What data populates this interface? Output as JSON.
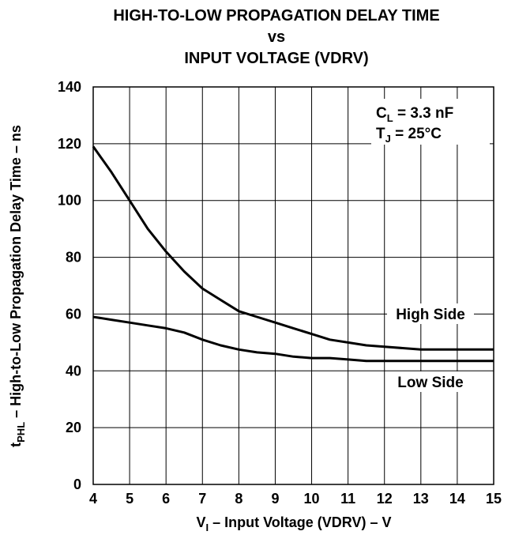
{
  "chart_data": {
    "type": "line",
    "title_lines": [
      "HIGH-TO-LOW PROPAGATION DELAY TIME",
      "vs",
      "INPUT VOLTAGE (VDRV)"
    ],
    "xlabel": {
      "main": "V",
      "sub": "I",
      "rest": " – Input Voltage (VDRV) – V"
    },
    "ylabel": {
      "main": "t",
      "sub": "PHL",
      "rest": "  – High-to-Low Propagation Delay Time – ns"
    },
    "xlim": [
      4,
      15
    ],
    "ylim": [
      0,
      140
    ],
    "x_ticks": [
      "4",
      "5",
      "6",
      "7",
      "8",
      "9",
      "10",
      "11",
      "12",
      "13",
      "14",
      "15"
    ],
    "y_ticks": [
      "0",
      "20",
      "40",
      "60",
      "80",
      "100",
      "120",
      "140"
    ],
    "grid": true,
    "conditions": [
      {
        "main": "C",
        "sub": "L",
        "rest": " = 3.3 nF"
      },
      {
        "main": "T",
        "sub": "J",
        "rest": " = 25°C"
      }
    ],
    "series": [
      {
        "name": "High Side",
        "x": [
          4,
          4.5,
          5,
          5.5,
          6,
          6.5,
          7,
          7.5,
          8,
          8.5,
          9,
          9.5,
          10,
          10.5,
          11,
          11.5,
          12,
          12.5,
          13,
          13.5,
          14,
          14.5,
          15
        ],
        "y": [
          119,
          110,
          100,
          90,
          82,
          75,
          69,
          65,
          61,
          59,
          57,
          55,
          53,
          51,
          50,
          49,
          48.5,
          48,
          47.5,
          47.5,
          47.5,
          47.5,
          47.5
        ]
      },
      {
        "name": "Low Side",
        "x": [
          4,
          4.5,
          5,
          5.5,
          6,
          6.5,
          7,
          7.5,
          8,
          8.5,
          9,
          9.5,
          10,
          10.5,
          11,
          11.5,
          12,
          12.5,
          13,
          13.5,
          14,
          14.5,
          15
        ],
        "y": [
          59,
          58,
          57,
          56,
          55,
          53.5,
          51,
          49,
          47.5,
          46.5,
          46,
          45,
          44.5,
          44.5,
          44,
          43.5,
          43.5,
          43.5,
          43.5,
          43.5,
          43.5,
          43.5,
          43.5
        ]
      }
    ]
  }
}
